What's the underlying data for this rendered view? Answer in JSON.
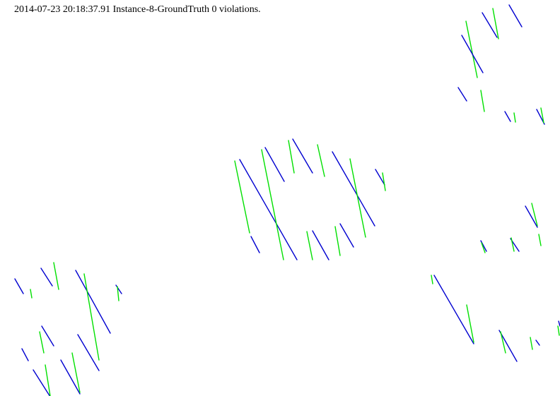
{
  "caption": "2014-07-23 20:18:37.91 Instance-8-GroundTruth 0 violations.",
  "colors": {
    "blue": "#0000d0",
    "green": "#00e000",
    "background": "#ffffff",
    "text": "#000000"
  }
}
